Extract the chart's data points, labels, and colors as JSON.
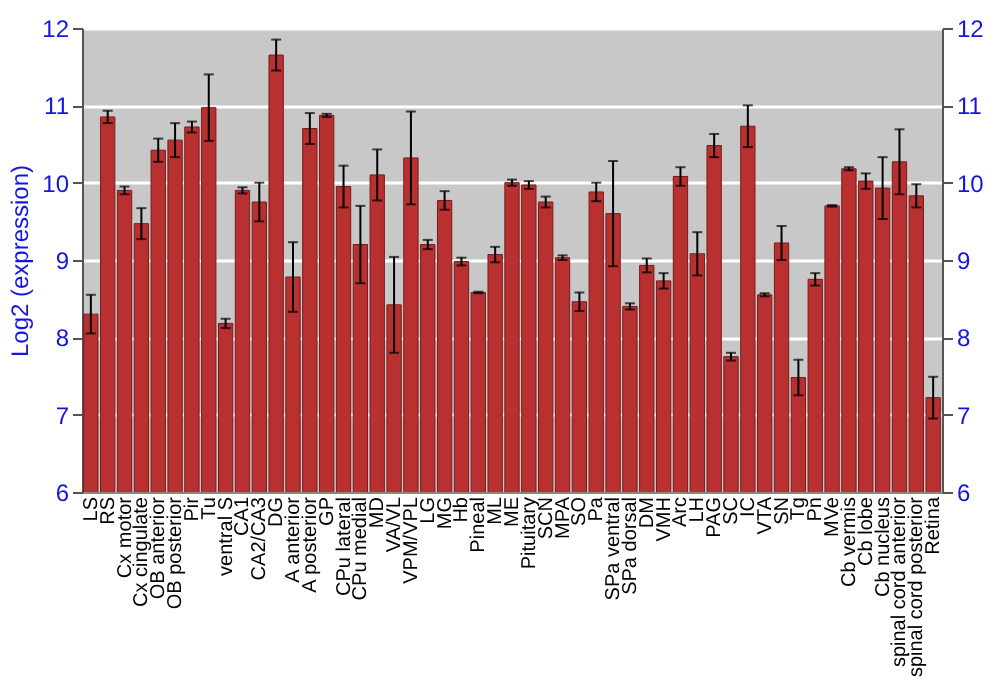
{
  "chart_data": {
    "type": "bar",
    "ylabel": "Log2 (expression)",
    "categories": [
      "LS",
      "RS",
      "Cx motor",
      "Cx cingulate",
      "OB anterior",
      "OB posterior",
      "Pir",
      "Tu",
      "ventral S",
      "CA1",
      "CA2/CA3",
      "DG",
      "A anterior",
      "A posterior",
      "GP",
      "CPu lateral",
      "CPu medial",
      "MD",
      "VA/VL",
      "VPM/VPL",
      "LG",
      "MG",
      "Hb",
      "Pineal",
      "ML",
      "ME",
      "Pituitary",
      "SCN",
      "MPA",
      "SO",
      "Pa",
      "SPa ventral",
      "SPa dorsal",
      "DM",
      "VMH",
      "Arc",
      "LH",
      "PAG",
      "SC",
      "IC",
      "VTA",
      "SN",
      "Tg",
      "Pn",
      "MVe",
      "Cb vermis",
      "Cb lobe",
      "Cb nucleus",
      "spinal cord anterior",
      "spinal cord posterior",
      "Retina"
    ],
    "values": [
      8.3,
      10.85,
      9.9,
      9.47,
      10.42,
      10.55,
      10.72,
      10.97,
      8.18,
      9.9,
      9.75,
      11.65,
      8.78,
      10.7,
      10.87,
      9.95,
      9.2,
      10.1,
      8.42,
      10.32,
      9.2,
      9.77,
      8.98,
      8.58,
      9.07,
      10.0,
      9.97,
      9.75,
      9.03,
      8.46,
      9.88,
      9.6,
      8.4,
      8.93,
      8.73,
      10.08,
      9.08,
      10.48,
      7.75,
      10.73,
      8.55,
      9.22,
      7.48,
      8.75,
      9.7,
      10.18,
      10.02,
      9.93,
      10.27,
      9.83,
      7.22
    ],
    "errors": [
      0.25,
      0.08,
      0.05,
      0.2,
      0.15,
      0.22,
      0.07,
      0.43,
      0.06,
      0.04,
      0.25,
      0.2,
      0.45,
      0.2,
      0.02,
      0.27,
      0.5,
      0.33,
      0.62,
      0.6,
      0.06,
      0.12,
      0.05,
      0.01,
      0.1,
      0.04,
      0.05,
      0.07,
      0.03,
      0.12,
      0.12,
      0.68,
      0.04,
      0.09,
      0.1,
      0.12,
      0.28,
      0.15,
      0.05,
      0.27,
      0.02,
      0.22,
      0.23,
      0.08,
      0.01,
      0.02,
      0.1,
      0.4,
      0.42,
      0.15,
      0.27
    ],
    "color": "#b83030",
    "ylim": [
      6,
      12
    ],
    "yticks": [
      6,
      7,
      8,
      9,
      10,
      11,
      12
    ],
    "y2lim": [
      6,
      12
    ],
    "y2ticks": [
      6,
      7,
      8,
      9,
      10,
      11,
      12
    ],
    "grid": "y"
  }
}
